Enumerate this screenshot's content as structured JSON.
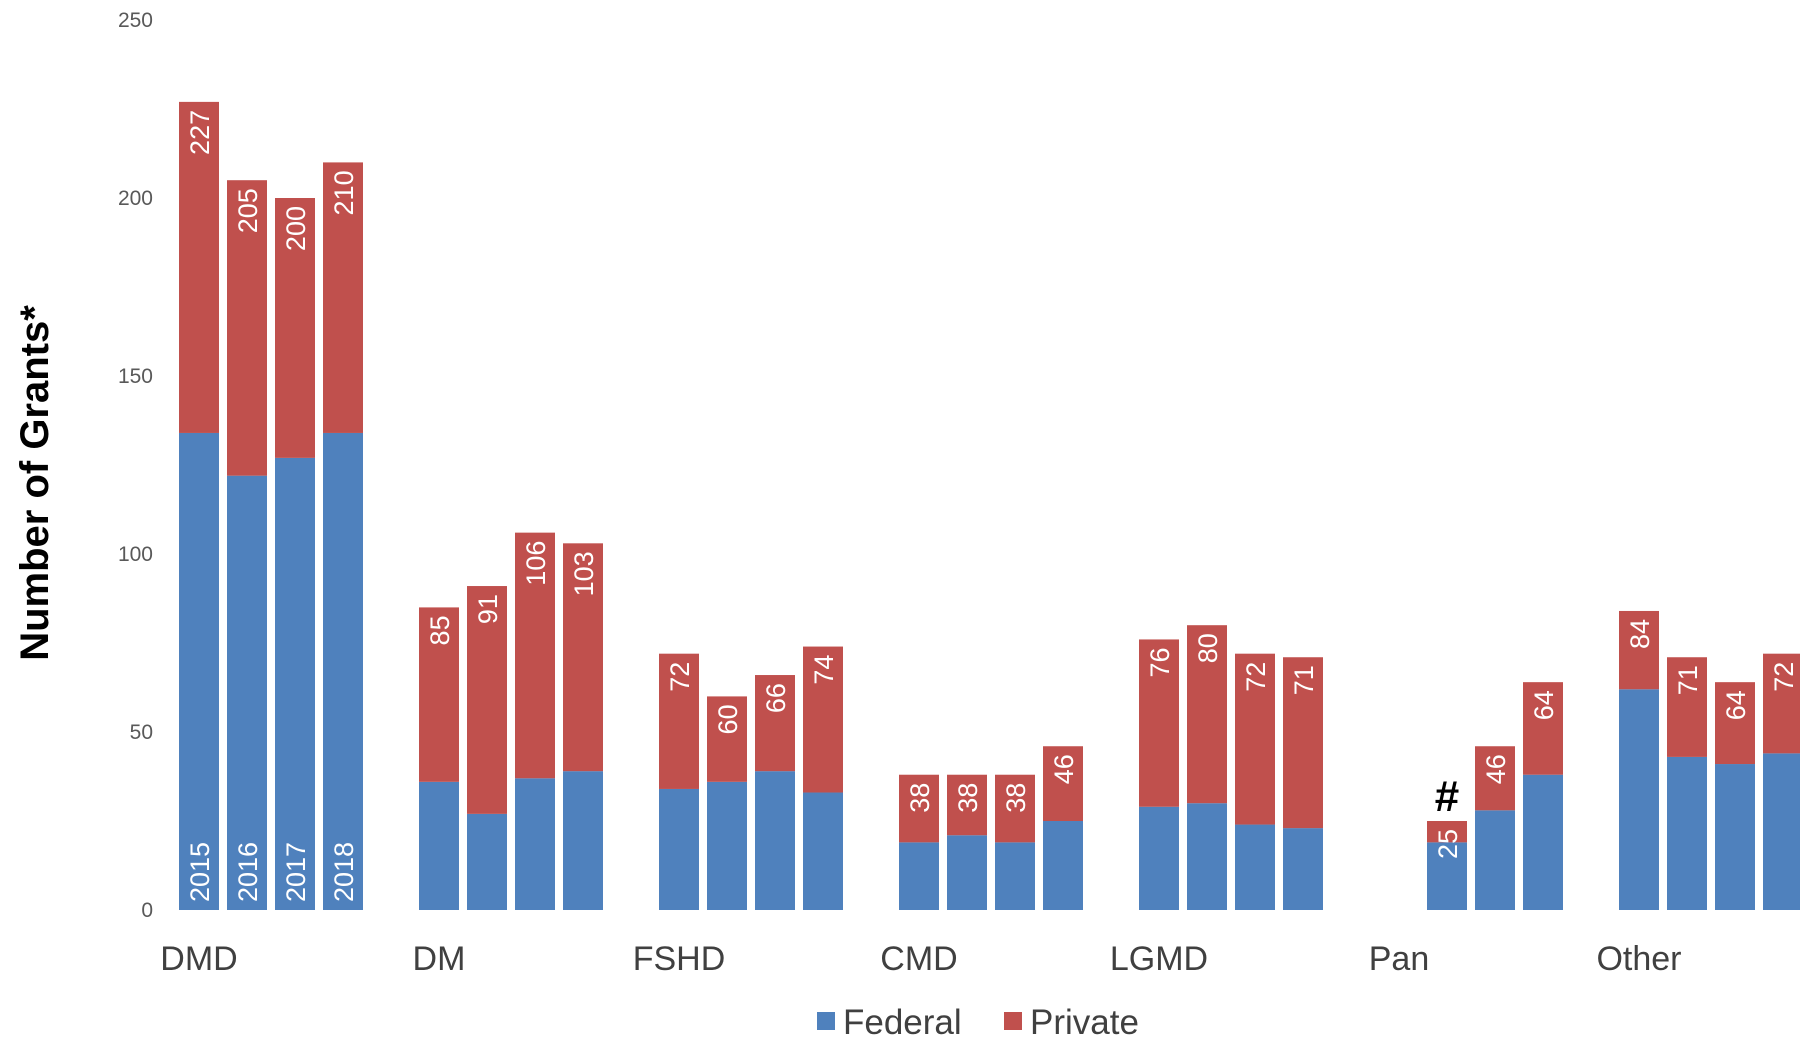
{
  "chart_data": {
    "type": "bar",
    "stacked": true,
    "ylabel": "Number of Grants*",
    "ylim": [
      0,
      250
    ],
    "yticks": [
      0,
      50,
      100,
      150,
      200,
      250
    ],
    "grid": false,
    "legend_position": "bottom",
    "colors": {
      "Federal": "#4f81bd",
      "Private": "#c0504d"
    },
    "groups": [
      {
        "name": "DMD",
        "bars": [
          {
            "year": "2015",
            "federal": 134,
            "total": 227
          },
          {
            "year": "2016",
            "federal": 122,
            "total": 205
          },
          {
            "year": "2017",
            "federal": 127,
            "total": 200
          },
          {
            "year": "2018",
            "federal": 134,
            "total": 210
          }
        ]
      },
      {
        "name": "DM",
        "bars": [
          {
            "year": "2015",
            "federal": 36,
            "total": 85
          },
          {
            "year": "2016",
            "federal": 27,
            "total": 91
          },
          {
            "year": "2017",
            "federal": 37,
            "total": 106
          },
          {
            "year": "2018",
            "federal": 39,
            "total": 103
          }
        ]
      },
      {
        "name": "FSHD",
        "bars": [
          {
            "year": "2015",
            "federal": 34,
            "total": 72
          },
          {
            "year": "2016",
            "federal": 36,
            "total": 60
          },
          {
            "year": "2017",
            "federal": 39,
            "total": 66
          },
          {
            "year": "2018",
            "federal": 33,
            "total": 74
          }
        ]
      },
      {
        "name": "CMD",
        "bars": [
          {
            "year": "2015",
            "federal": 19,
            "total": 38
          },
          {
            "year": "2016",
            "federal": 21,
            "total": 38
          },
          {
            "year": "2017",
            "federal": 19,
            "total": 38
          },
          {
            "year": "2018",
            "federal": 25,
            "total": 46
          }
        ]
      },
      {
        "name": "LGMD",
        "bars": [
          {
            "year": "2015",
            "federal": 29,
            "total": 76
          },
          {
            "year": "2016",
            "federal": 30,
            "total": 80
          },
          {
            "year": "2017",
            "federal": 24,
            "total": 72
          },
          {
            "year": "2018",
            "federal": 23,
            "total": 71
          }
        ]
      },
      {
        "name": "Pan",
        "bars": [
          {
            "year": "2015",
            "federal": null,
            "total": null,
            "marker": "#"
          },
          {
            "year": "2016",
            "federal": 19,
            "total": 25
          },
          {
            "year": "2017",
            "federal": 28,
            "total": 46
          },
          {
            "year": "2018",
            "federal": 38,
            "total": 64
          }
        ]
      },
      {
        "name": "Other",
        "bars": [
          {
            "year": "2015",
            "federal": 62,
            "total": 84
          },
          {
            "year": "2016",
            "federal": 43,
            "total": 71
          },
          {
            "year": "2017",
            "federal": 41,
            "total": 64
          },
          {
            "year": "2018",
            "federal": 44,
            "total": 72
          }
        ]
      }
    ],
    "legend": [
      "Federal",
      "Private"
    ]
  }
}
